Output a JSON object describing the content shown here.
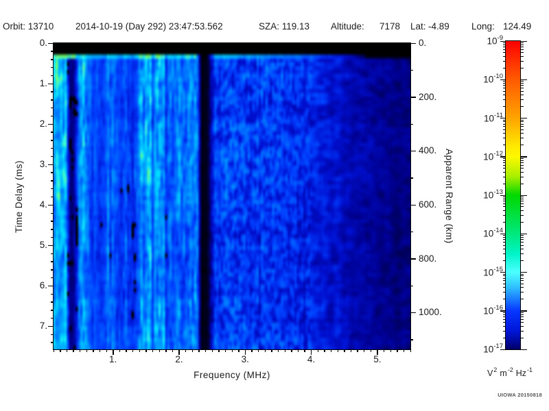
{
  "header": {
    "items": [
      "Orbit: 13710",
      "2014-10-19 (Day 292) 23:47:53.562",
      "SZA: 119.13",
      "Altitude:",
      "7178",
      "Lat:",
      "-4.89",
      "Long:",
      "124.49"
    ]
  },
  "axes": {
    "x": {
      "label": "Frequency (MHz)",
      "min": 0.1,
      "max": 5.5,
      "minor_step": 0.1,
      "major_ticks": [
        1,
        2,
        3,
        4,
        5
      ],
      "major_tick_labels": [
        "1.",
        "2.",
        "3.",
        "4.",
        "5."
      ]
    },
    "y_left": {
      "label": "Time Delay (ms)",
      "min": 0,
      "max": 7.57,
      "minor_step": 0.2,
      "major_ticks": [
        0,
        1,
        2,
        3,
        4,
        5,
        6,
        7
      ],
      "major_tick_labels": [
        "0.",
        "1.",
        "2.",
        "3.",
        "4.",
        "5.",
        "6.",
        "7."
      ]
    },
    "y_right": {
      "label": "Apparent Range (km)",
      "min": 0,
      "max": 1136,
      "minor_step": 100,
      "major_ticks": [
        0,
        200,
        400,
        600,
        800,
        1000
      ],
      "major_tick_labels": [
        "0.",
        "200.",
        "400.",
        "600.",
        "800.",
        "1000."
      ]
    }
  },
  "colorbar": {
    "scale": "log10",
    "exponents": [
      -9,
      -10,
      -11,
      -12,
      -13,
      -14,
      -15,
      -16,
      -17
    ],
    "gradient_stops": [
      [
        "0%",
        "#fb0000"
      ],
      [
        "6%",
        "#ff2d00"
      ],
      [
        "12.5%",
        "#ff5a00"
      ],
      [
        "25%",
        "#ffa400"
      ],
      [
        "34%",
        "#ffe800"
      ],
      [
        "37.5%",
        "#fdf800"
      ],
      [
        "44%",
        "#a8ee00"
      ],
      [
        "50%",
        "#00d800"
      ],
      [
        "62.5%",
        "#00e87d"
      ],
      [
        "69%",
        "#00f4c8"
      ],
      [
        "75%",
        "#4cffff"
      ],
      [
        "80%",
        "#2fbdff"
      ],
      [
        "87.5%",
        "#0637ff"
      ],
      [
        "94%",
        "#0016d8"
      ],
      [
        "100%",
        "#00006a"
      ]
    ],
    "unit_parts": [
      {
        "base": "V",
        "sup": "2"
      },
      {
        "base": "m",
        "sup": "-2"
      },
      {
        "base": "Hz",
        "sup": "-1"
      }
    ]
  },
  "footer": {
    "credit": "UIOWA 20150818"
  },
  "chart_data": {
    "type": "heatmap",
    "subtype": "topside-sounder-ionogram-spectrogram",
    "xlabel": "Frequency (MHz)",
    "x_range_mhz": [
      0.1,
      5.5
    ],
    "ylabel_left": "Time Delay (ms)",
    "y_range_ms": [
      0,
      7.57
    ],
    "ylabel_right": "Apparent Range (km)",
    "y_range_km": [
      0,
      1136
    ],
    "z_units": "V^2 m^-2 Hz^-1",
    "z_scale": "log10",
    "z_range": [
      1e-17,
      1e-09
    ],
    "observation": {
      "orbit": 13710,
      "date": "2014-10-19",
      "doy": 292,
      "time_utc": "23:47:53.562",
      "sza_deg": 119.13,
      "altitude_km": 7178,
      "lat_deg": -4.89,
      "long_deg": 124.49
    },
    "features": [
      "black transmit-blanking band from 0 to ~0.24 ms delay",
      "bright cyan-green noise line at ~0.3 ms delay, fading out above ~4.6 MHz",
      "dark vertical attenuation band near 0.32-0.44 MHz",
      "black vertical gap near 2.33-2.43 MHz",
      "diffuse blue-cyan noise with vertical striping, brightest below 2.3 MHz",
      "noise dims toward high frequency; mostly black with sparse dark-blue blobs above 4.7 MHz"
    ],
    "render": {
      "seed": 1337,
      "grid": {
        "cols": 160,
        "rows": 80
      },
      "stripe_region_max_mhz": 2.33,
      "top_blank_ms": 0.24,
      "ghost_line": {
        "t0_ms": 0.24,
        "t1_ms": 0.38,
        "intensity": [
          [
            0.1,
            1.0
          ],
          [
            0.5,
            0.95
          ],
          [
            1.5,
            0.9
          ],
          [
            2.25,
            0.84
          ],
          [
            2.33,
            0.05
          ],
          [
            2.43,
            0.05
          ],
          [
            2.55,
            0.74
          ],
          [
            3.2,
            0.64
          ],
          [
            4.0,
            0.5
          ],
          [
            4.6,
            0.28
          ],
          [
            4.85,
            0.08
          ],
          [
            5.5,
            0.06
          ]
        ]
      },
      "envelope": [
        [
          0.1,
          0.84
        ],
        [
          0.22,
          0.78
        ],
        [
          0.3,
          0.72
        ],
        [
          0.33,
          0.3
        ],
        [
          0.37,
          0.16
        ],
        [
          0.43,
          0.3
        ],
        [
          0.5,
          0.8
        ],
        [
          0.8,
          0.74
        ],
        [
          1.2,
          0.68
        ],
        [
          1.7,
          0.63
        ],
        [
          2.28,
          0.58
        ],
        [
          2.33,
          0.04
        ],
        [
          2.43,
          0.04
        ],
        [
          2.55,
          0.47
        ],
        [
          3.0,
          0.44
        ],
        [
          3.6,
          0.41
        ],
        [
          4.2,
          0.34
        ],
        [
          4.7,
          0.27
        ],
        [
          5.1,
          0.21
        ],
        [
          5.5,
          0.18
        ]
      ],
      "black_threshold": [
        [
          0.1,
          0.33
        ],
        [
          2.3,
          0.33
        ],
        [
          2.5,
          0.23
        ],
        [
          3.5,
          0.25
        ],
        [
          4.2,
          0.28
        ],
        [
          4.8,
          0.28
        ],
        [
          5.5,
          0.26
        ]
      ],
      "colormap": [
        [
          0,
          "#000000"
        ],
        [
          0.1,
          "#000040"
        ],
        [
          0.2,
          "#000090"
        ],
        [
          0.32,
          "#0010d0"
        ],
        [
          0.45,
          "#0040ff"
        ],
        [
          0.6,
          "#0080ff"
        ],
        [
          0.72,
          "#00b4ff"
        ],
        [
          0.82,
          "#00dcff"
        ],
        [
          0.9,
          "#30f0e8"
        ],
        [
          0.96,
          "#58f898"
        ],
        [
          1,
          "#70ff70"
        ]
      ]
    }
  }
}
